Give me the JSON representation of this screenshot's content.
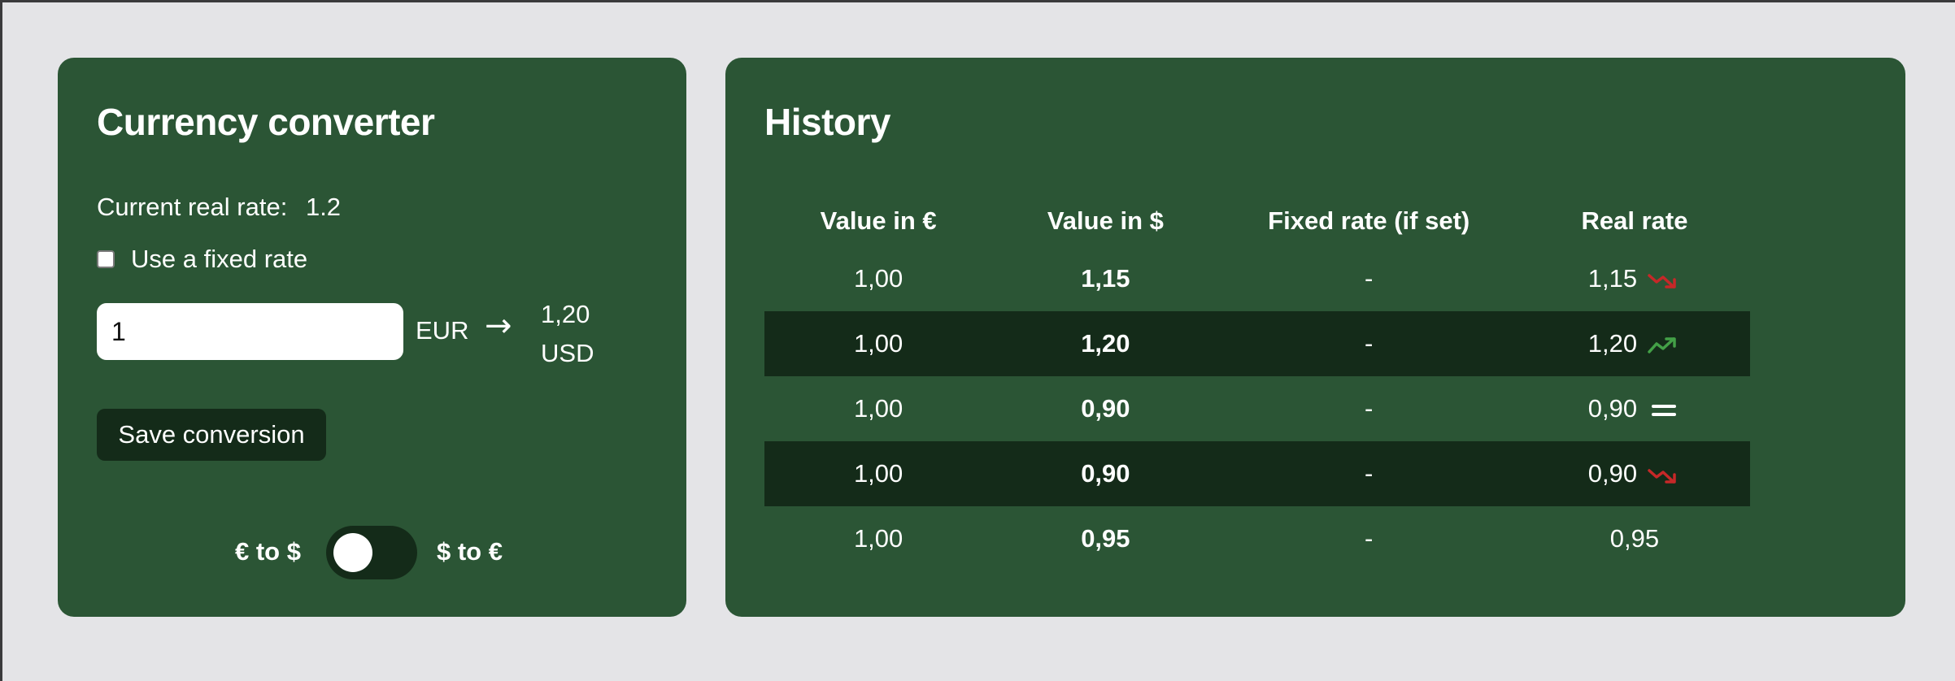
{
  "converter": {
    "title": "Currency converter",
    "rate_label": "Current real rate:",
    "rate_value": "1.2",
    "fixed_rate_label": "Use a fixed rate",
    "amount_value": "1",
    "from_currency": "EUR",
    "arrow_icon": "arrow-right-icon",
    "result_amount": "1,20",
    "result_currency": "USD",
    "save_label": "Save conversion",
    "toggle": {
      "left_label": "€ to $",
      "right_label": "$ to €",
      "state": "off"
    }
  },
  "history": {
    "title": "History",
    "columns": [
      "Value in €",
      "Value in $",
      "Fixed rate (if set)",
      "Real rate"
    ],
    "rows": [
      {
        "eur": "1,00",
        "usd": "1,15",
        "fixed": "-",
        "real": "1,15",
        "trend": "down"
      },
      {
        "eur": "1,00",
        "usd": "1,20",
        "fixed": "-",
        "real": "1,20",
        "trend": "up"
      },
      {
        "eur": "1,00",
        "usd": "0,90",
        "fixed": "-",
        "real": "0,90",
        "trend": "equal"
      },
      {
        "eur": "1,00",
        "usd": "0,90",
        "fixed": "-",
        "real": "0,90",
        "trend": "down"
      },
      {
        "eur": "1,00",
        "usd": "0,95",
        "fixed": "-",
        "real": "0,95",
        "trend": "none"
      }
    ]
  },
  "colors": {
    "card_bg": "#2b5535",
    "dark_accent": "#142b19",
    "page_bg": "#e4e4e7",
    "trend_down": "#c62828",
    "trend_up": "#43a047"
  }
}
